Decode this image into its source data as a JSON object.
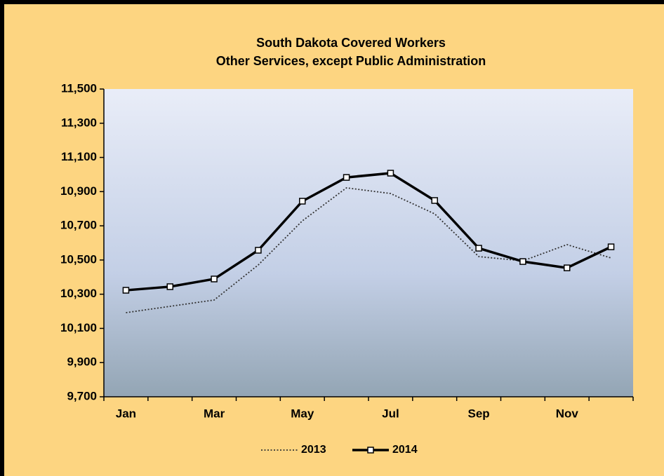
{
  "chart_data": {
    "type": "line",
    "title": "South Dakota Covered Workers",
    "subtitle": "Other Services, except Public Administration",
    "categories": [
      "Jan",
      null,
      "Mar",
      null,
      "May",
      null,
      "Jul",
      null,
      "Sep",
      null,
      "Nov",
      null
    ],
    "series": [
      {
        "name": "2013",
        "color": "#333333",
        "style": "dotted",
        "marker": "none",
        "values": [
          10192,
          10229,
          10266,
          10471,
          10729,
          10922,
          10889,
          10770,
          10520,
          10495,
          10590,
          10512
        ]
      },
      {
        "name": "2014",
        "color": "#000000",
        "style": "solid",
        "marker": "square",
        "values": [
          10323,
          10344,
          10389,
          10557,
          10844,
          10983,
          11008,
          10848,
          10569,
          10491,
          10454,
          10577
        ]
      }
    ],
    "ylim": [
      9700,
      11500
    ],
    "yticks": [
      {
        "value": 9700,
        "label": "9,700"
      },
      {
        "value": 9900,
        "label": "9,900"
      },
      {
        "value": 10100,
        "label": "10,100"
      },
      {
        "value": 10300,
        "label": "10,300"
      },
      {
        "value": 10500,
        "label": "10,500"
      },
      {
        "value": 10700,
        "label": "10,700"
      },
      {
        "value": 10900,
        "label": "10,900"
      },
      {
        "value": 11100,
        "label": "11,100"
      },
      {
        "value": 11300,
        "label": "11,300"
      },
      {
        "value": 11500,
        "label": "11,500"
      }
    ],
    "legend": "bottom"
  }
}
